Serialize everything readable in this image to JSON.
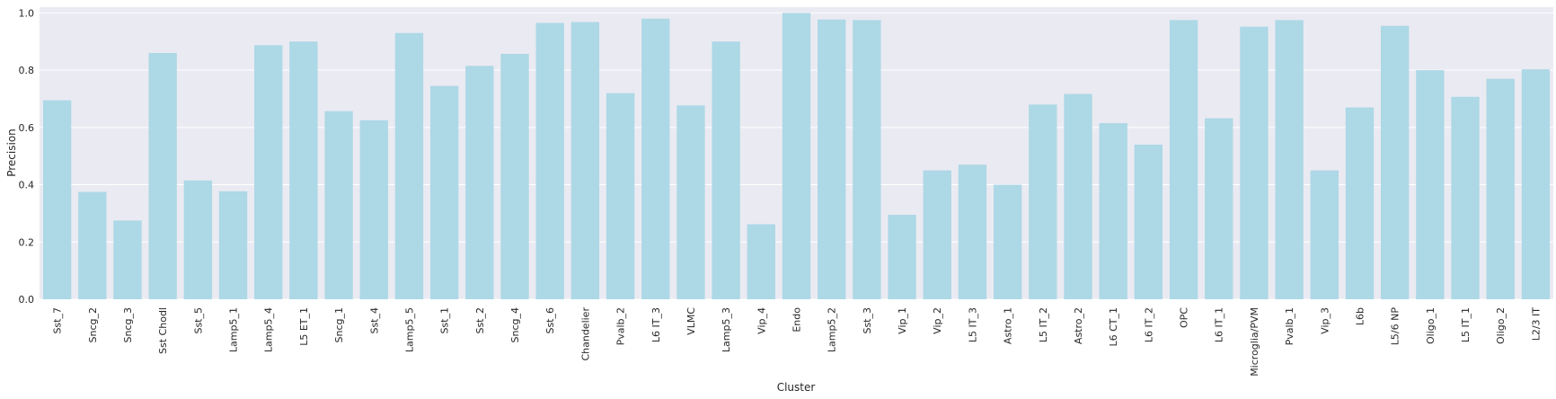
{
  "chart_data": {
    "type": "bar",
    "xlabel": "Cluster",
    "ylabel": "Precision",
    "ylim": [
      0,
      1.02
    ],
    "yticks": [
      0.0,
      0.2,
      0.4,
      0.6,
      0.8,
      1.0
    ],
    "ytick_labels": [
      "0.0",
      "0.2",
      "0.4",
      "0.6",
      "0.8",
      "1.0"
    ],
    "grid": true,
    "background_color": "#eaeaf2",
    "grid_color": "#ffffff",
    "bar_color": "#add8e6",
    "categories": [
      "Sst_7",
      "Sncg_2",
      "Sncg_3",
      "Sst Chodl",
      "Sst_5",
      "Lamp5_1",
      "Lamp5_4",
      "L5 ET_1",
      "Sncg_1",
      "Sst_4",
      "Lamp5_5",
      "Sst_1",
      "Sst_2",
      "Sncg_4",
      "Sst_6",
      "Chandelier",
      "Pvalb_2",
      "L6 IT_3",
      "VLMC",
      "Lamp5_3",
      "Vip_4",
      "Endo",
      "Lamp5_2",
      "Sst_3",
      "Vip_1",
      "Vip_2",
      "L5 IT_3",
      "Astro_1",
      "L5 IT_2",
      "Astro_2",
      "L6 CT_1",
      "L6 IT_2",
      "OPC",
      "L6 IT_1",
      "Microglia/PVM",
      "Pvalb_1",
      "Vip_3",
      "L6b",
      "L5/6 NP",
      "Oligo_1",
      "L5 IT_1",
      "Oligo_2",
      "L2/3 IT"
    ],
    "values": [
      0.695,
      0.375,
      0.275,
      0.86,
      0.415,
      0.377,
      0.887,
      0.9,
      0.657,
      0.625,
      0.93,
      0.745,
      0.815,
      0.857,
      0.965,
      0.968,
      0.72,
      0.98,
      0.677,
      0.9,
      0.262,
      1.0,
      0.977,
      0.975,
      0.295,
      0.45,
      0.47,
      0.4,
      0.68,
      0.717,
      0.615,
      0.54,
      0.975,
      0.632,
      0.952,
      0.975,
      0.45,
      0.67,
      0.955,
      0.8,
      0.707,
      0.77,
      0.803
    ]
  }
}
